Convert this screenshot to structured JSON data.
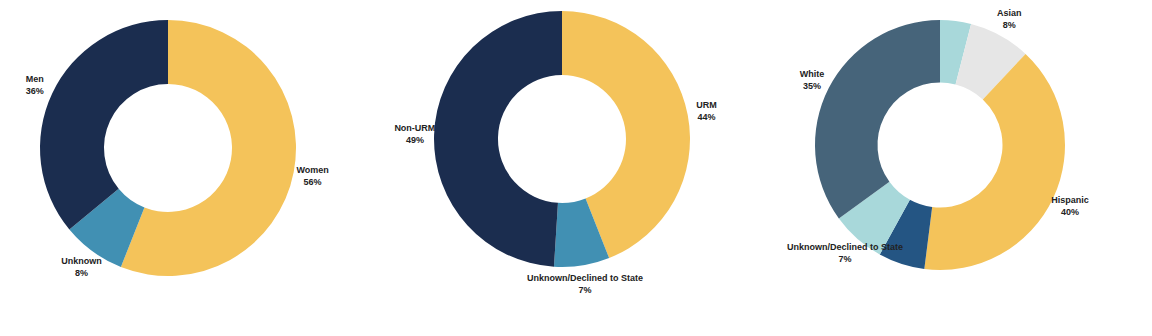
{
  "chart_data": [
    {
      "type": "donut",
      "categories": [
        "Women",
        "Unknown",
        "Men"
      ],
      "values": [
        56,
        8,
        36
      ],
      "value_labels": [
        "56%",
        "8%",
        "36%"
      ],
      "colors": [
        "#f4c35a",
        "#4190b3",
        "#1b2d4f"
      ],
      "data_labels": true
    },
    {
      "type": "donut",
      "categories": [
        "URM",
        "Unknown/Declined to State",
        "Non-URM"
      ],
      "values": [
        44,
        7,
        49
      ],
      "value_labels": [
        "44%",
        "7%",
        "49%"
      ],
      "colors": [
        "#f4c35a",
        "#4190b3",
        "#1b2d4f"
      ],
      "data_labels": true
    },
    {
      "type": "donut",
      "categories": [
        null,
        "Asian",
        "Hispanic",
        null,
        "Unknown/Declined to State",
        "White"
      ],
      "values": [
        4,
        8,
        40,
        6,
        7,
        35
      ],
      "value_labels": [
        null,
        "8%",
        "40%",
        null,
        "7%",
        "35%"
      ],
      "colors": [
        "#a8d8da",
        "#e6e6e6",
        "#f4c35a",
        "#245583",
        "#a8d8da",
        "#46647a"
      ],
      "data_labels": true
    }
  ]
}
